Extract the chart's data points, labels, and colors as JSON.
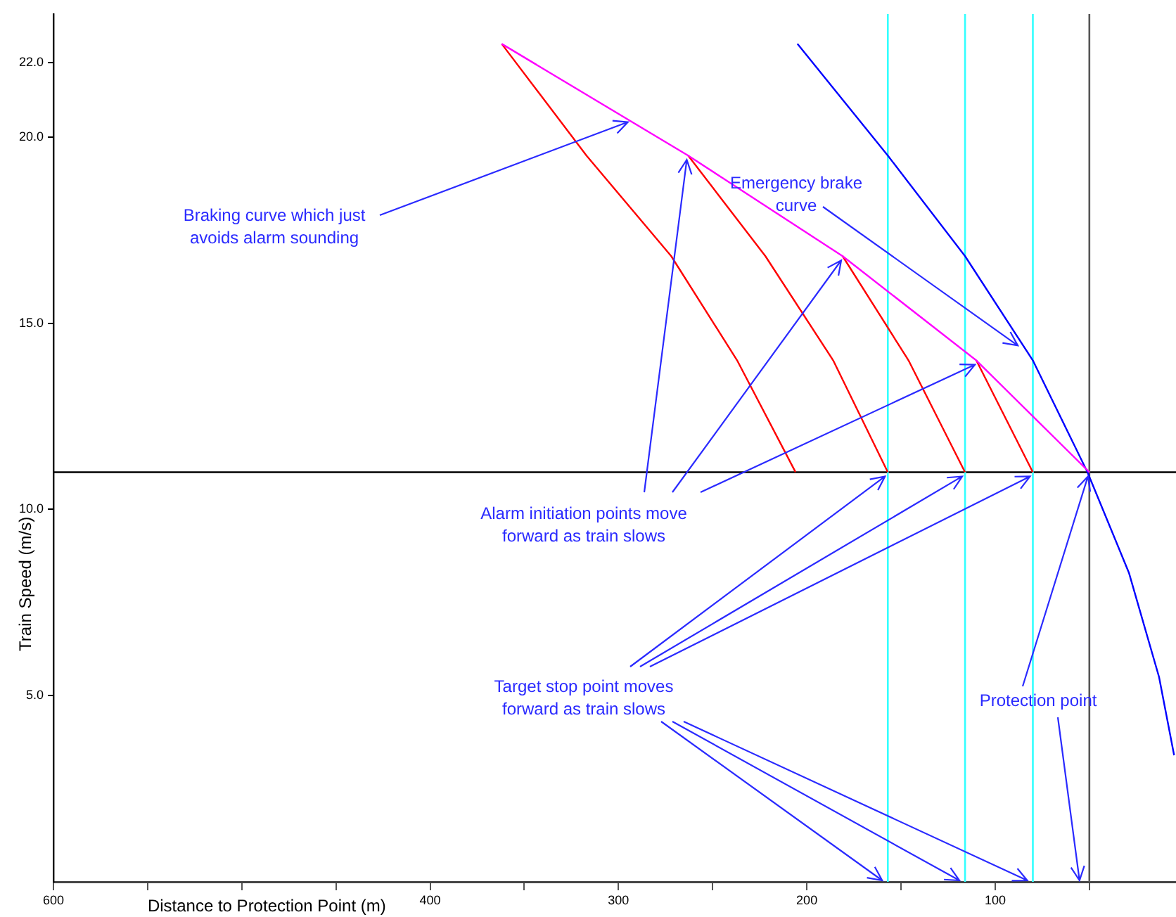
{
  "chart_data": {
    "type": "line",
    "xlabel": "Distance to Protection Point (m)",
    "ylabel": "Train Speed (m/s)",
    "xlim": [
      600,
      4
    ],
    "ylim": [
      0,
      23.3
    ],
    "xticks": [
      600,
      {
        "value": 550,
        "label": null
      },
      {
        "value": 500,
        "label": null
      },
      {
        "value": 450,
        "label": null
      },
      400,
      {
        "value": 350,
        "label": null
      },
      300,
      {
        "value": 250,
        "label": null
      },
      200,
      {
        "value": 150,
        "label": null
      },
      100,
      {
        "value": 50,
        "label": null
      }
    ],
    "yticks": [
      {
        "value": 5,
        "label": "5.0"
      },
      {
        "value": 10,
        "label": "10.0"
      },
      {
        "value": 15,
        "label": "15.0"
      },
      {
        "value": 20,
        "label": "20.0"
      },
      {
        "value": 22,
        "label": "22.0"
      }
    ],
    "marker": "none",
    "series": [
      {
        "color": "#ff00ff",
        "x": [
          362,
          263,
          181,
          110,
          50
        ],
        "values": [
          22.5,
          19.5,
          16.8,
          14.0,
          11
        ]
      },
      {
        "color": "#ff0000",
        "x": [
          362,
          317,
          272,
          237,
          206
        ],
        "values": [
          22.5,
          19.5,
          16.8,
          14.0,
          11
        ]
      },
      {
        "color": "#ff0000",
        "x": [
          263,
          222,
          186,
          157
        ],
        "values": [
          19.5,
          16.8,
          14.0,
          11
        ]
      },
      {
        "color": "#ff0000",
        "x": [
          181,
          146,
          116
        ],
        "values": [
          16.8,
          14.0,
          11
        ]
      },
      {
        "color": "#ff0000",
        "x": [
          110,
          80
        ],
        "values": [
          14.0,
          11
        ]
      },
      {
        "color": "#0000ff",
        "x": [
          205,
          157,
          116,
          80,
          51,
          29,
          13,
          5
        ],
        "values": [
          22.5,
          19.5,
          16.8,
          14.0,
          11,
          8.3,
          5.5,
          3.4
        ]
      }
    ],
    "ref_lines": [
      {
        "axis": "y",
        "value": 11,
        "color": "#000000"
      },
      {
        "axis": "x",
        "value": 50,
        "color": "#555555"
      },
      {
        "axis": "x",
        "value": 157,
        "color": "#33ffff"
      },
      {
        "axis": "x",
        "value": 116,
        "color": "#33ffff"
      },
      {
        "axis": "x",
        "value": 80,
        "color": "#33ffff"
      }
    ],
    "annotations": [
      {
        "text": "Braking curve which just avoids alarm sounding",
        "x": 295,
        "y": 20.4
      },
      {
        "text": "Emergency brake curve",
        "x": 88,
        "y": 14.4
      },
      {
        "text": "Alarm initiation points move forward as train slows",
        "x": 263,
        "y": 19.5
      },
      {
        "text": "Target stop point moves forward as train slows",
        "x": 157,
        "y": 11
      },
      {
        "text": "Protection point",
        "x": 50,
        "y": 11
      }
    ]
  }
}
